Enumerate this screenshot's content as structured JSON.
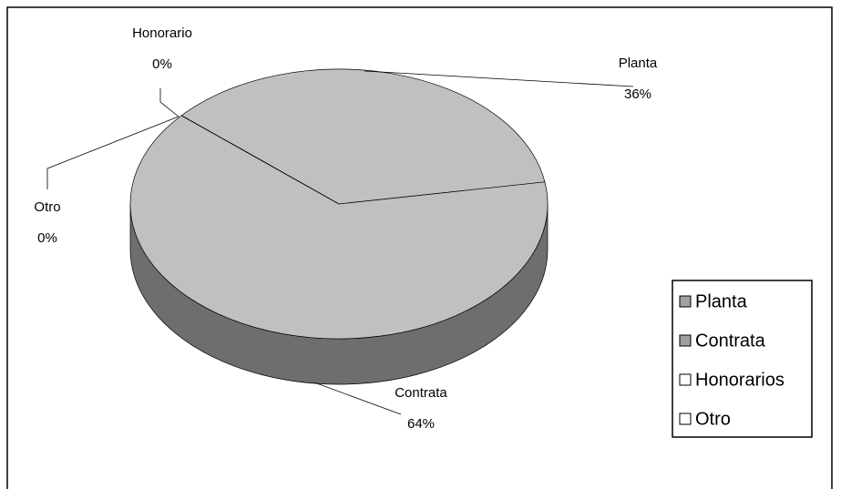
{
  "chart_data": {
    "type": "pie3d",
    "categories": [
      "Planta",
      "Contrata",
      "Honorarios",
      "Otro"
    ],
    "data_label_names": [
      "Planta",
      "Contrata",
      "Honorario",
      "Otro"
    ],
    "values": [
      36,
      64,
      0,
      0
    ],
    "value_labels": [
      "36%",
      "64%",
      "0%",
      "0%"
    ],
    "colors": [
      "#c0c0c0",
      "#c0c0c0",
      "#ffffff",
      "#ffffff"
    ],
    "side_colors": [
      "#6e6e6e",
      "#6e6e6e",
      "#ffffff",
      "#ffffff"
    ],
    "legend_swatch_colors": [
      "#a0a0a0",
      "#a0a0a0",
      "#ffffff",
      "#ffffff"
    ],
    "legend": "right"
  }
}
